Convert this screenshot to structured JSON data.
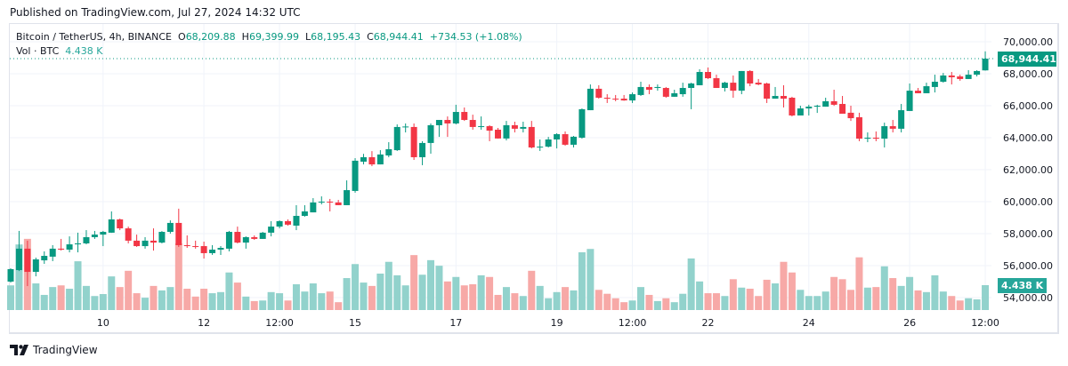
{
  "published": "Published on TradingView.com, Jul 27, 2024 14:32 UTC",
  "legend": {
    "symbol": "Bitcoin / TetherUS, 4h, BINANCE",
    "o_label": "O",
    "o": "68,209.88",
    "h_label": "H",
    "h": "69,399.99",
    "l_label": "L",
    "l": "68,195.43",
    "c_label": "C",
    "c": "68,944.41",
    "change": "+734.53 (+1.08%)",
    "vol_label": "Vol · BTC",
    "vol": "4.438 K"
  },
  "price_tag": "68,944.41",
  "vol_tag": "4.438 K",
  "footer": {
    "brand": "TradingView"
  },
  "colors": {
    "up": "#089981",
    "down": "#f23645",
    "vol_up": "#92d2cc",
    "vol_down": "#f7a9a7",
    "grid": "#f0f3fa"
  },
  "chart_data": {
    "type": "candlestick",
    "title": "Bitcoin / TetherUS, 4h, BINANCE",
    "interval": "4h",
    "ylim": [
      54000,
      70000
    ],
    "y_ticks": [
      "70,000.00",
      "68,000.00",
      "66,000.00",
      "64,000.00",
      "62,000.00",
      "60,000.00",
      "58,000.00",
      "56,000.00",
      "54,000.00"
    ],
    "y_tick_values": [
      70000,
      68000,
      66000,
      64000,
      62000,
      60000,
      58000,
      56000,
      54000
    ],
    "x_ticks": [
      {
        "label": "10",
        "candle": 11
      },
      {
        "label": "12",
        "candle": 23
      },
      {
        "label": "12:00",
        "candle": 32
      },
      {
        "label": "15",
        "candle": 41
      },
      {
        "label": "17",
        "candle": 53
      },
      {
        "label": "19",
        "candle": 65
      },
      {
        "label": "12:00",
        "candle": 74
      },
      {
        "label": "22",
        "candle": 83
      },
      {
        "label": "24",
        "candle": 95
      },
      {
        "label": "26",
        "candle": 107
      },
      {
        "label": "12:00",
        "candle": 116
      }
    ],
    "grid": true,
    "ohlc": [
      [
        55000,
        55830,
        54940,
        55780
      ],
      [
        55720,
        58170,
        55660,
        57060
      ],
      [
        57060,
        57560,
        54720,
        55610
      ],
      [
        55610,
        56500,
        55330,
        56390
      ],
      [
        56330,
        56890,
        56110,
        56610
      ],
      [
        56560,
        57280,
        56280,
        57060
      ],
      [
        57060,
        57670,
        56940,
        57000
      ],
      [
        57000,
        57830,
        56830,
        57330
      ],
      [
        57330,
        58060,
        56830,
        57390
      ],
      [
        57390,
        58220,
        57330,
        57780
      ],
      [
        57780,
        58170,
        57670,
        57940
      ],
      [
        57940,
        58170,
        57220,
        58110
      ],
      [
        58060,
        59390,
        58050,
        58890
      ],
      [
        58890,
        58940,
        58220,
        58330
      ],
      [
        58330,
        58440,
        57390,
        57560
      ],
      [
        57560,
        57940,
        57170,
        57220
      ],
      [
        57220,
        57780,
        57060,
        57560
      ],
      [
        57560,
        58330,
        56940,
        57440
      ],
      [
        57440,
        58160,
        57390,
        58110
      ],
      [
        58110,
        58830,
        58000,
        58670
      ],
      [
        58670,
        59560,
        57170,
        57280
      ],
      [
        57280,
        57890,
        57110,
        57220
      ],
      [
        57220,
        57560,
        57060,
        57170
      ],
      [
        57220,
        57500,
        56440,
        56780
      ],
      [
        56780,
        57280,
        56670,
        57000
      ],
      [
        57000,
        57220,
        56670,
        57110
      ],
      [
        57060,
        58170,
        56890,
        58110
      ],
      [
        58110,
        58440,
        57390,
        57440
      ],
      [
        57440,
        57830,
        57060,
        57780
      ],
      [
        57780,
        57890,
        57610,
        57670
      ],
      [
        57670,
        58110,
        57670,
        58060
      ],
      [
        58060,
        58780,
        57830,
        58440
      ],
      [
        58440,
        58830,
        58330,
        58780
      ],
      [
        58780,
        58890,
        58500,
        58560
      ],
      [
        58500,
        59780,
        58220,
        59110
      ],
      [
        59110,
        59780,
        59060,
        59390
      ],
      [
        59330,
        60220,
        59330,
        59950
      ],
      [
        59950,
        60330,
        59830,
        60000
      ],
      [
        60000,
        60170,
        59390,
        59950
      ],
      [
        59950,
        60110,
        59780,
        59780
      ],
      [
        59780,
        61330,
        59780,
        60720
      ],
      [
        60670,
        62720,
        60560,
        62560
      ],
      [
        62500,
        62990,
        62330,
        62780
      ],
      [
        62780,
        63160,
        62220,
        62330
      ],
      [
        62330,
        63220,
        62330,
        62950
      ],
      [
        62890,
        63720,
        62780,
        63280
      ],
      [
        63220,
        64830,
        63170,
        64670
      ],
      [
        64670,
        64890,
        64330,
        64700
      ],
      [
        64670,
        64890,
        62610,
        62780
      ],
      [
        62780,
        63780,
        62280,
        63670
      ],
      [
        63670,
        64890,
        63000,
        64780
      ],
      [
        64780,
        65110,
        64050,
        65110
      ],
      [
        65110,
        65330,
        64050,
        64890
      ],
      [
        64890,
        66060,
        64830,
        65610
      ],
      [
        65610,
        65890,
        65050,
        65110
      ],
      [
        65110,
        65440,
        64500,
        64670
      ],
      [
        64670,
        65330,
        64500,
        64720
      ],
      [
        64720,
        64780,
        63780,
        64440
      ],
      [
        64500,
        64610,
        63940,
        63950
      ],
      [
        63950,
        65050,
        63830,
        64780
      ],
      [
        64780,
        65000,
        64330,
        64560
      ],
      [
        64560,
        65000,
        64330,
        64670
      ],
      [
        64670,
        65050,
        63330,
        63390
      ],
      [
        63390,
        63890,
        63170,
        63440
      ],
      [
        63440,
        64050,
        63390,
        63890
      ],
      [
        63890,
        64280,
        63330,
        64220
      ],
      [
        64220,
        64390,
        63500,
        63560
      ],
      [
        63560,
        64110,
        63390,
        64060
      ],
      [
        64000,
        65830,
        63940,
        65780
      ],
      [
        65720,
        67330,
        65720,
        67060
      ],
      [
        67060,
        67280,
        66440,
        66500
      ],
      [
        66500,
        66720,
        66170,
        66440
      ],
      [
        66440,
        66670,
        66280,
        66390
      ],
      [
        66440,
        66670,
        66310,
        66330
      ],
      [
        66330,
        66830,
        66170,
        66720
      ],
      [
        66670,
        67500,
        66610,
        67170
      ],
      [
        67170,
        67330,
        66720,
        67000
      ],
      [
        67110,
        67330,
        66940,
        67170
      ],
      [
        67110,
        67170,
        66500,
        66560
      ],
      [
        66560,
        67000,
        66560,
        66780
      ],
      [
        66720,
        67440,
        66560,
        67110
      ],
      [
        67110,
        67440,
        65780,
        67390
      ],
      [
        67280,
        68280,
        67280,
        68110
      ],
      [
        68110,
        68390,
        67670,
        67720
      ],
      [
        67720,
        67940,
        67110,
        67110
      ],
      [
        67110,
        67500,
        66890,
        67440
      ],
      [
        67440,
        67890,
        66500,
        66940
      ],
      [
        66940,
        68170,
        66720,
        68170
      ],
      [
        68170,
        68220,
        67220,
        67390
      ],
      [
        67440,
        67670,
        67280,
        67330
      ],
      [
        67390,
        67440,
        66170,
        66440
      ],
      [
        66440,
        67170,
        66440,
        66610
      ],
      [
        66610,
        67280,
        65890,
        66440
      ],
      [
        66500,
        66560,
        65330,
        65390
      ],
      [
        65390,
        66000,
        65390,
        65830
      ],
      [
        65830,
        66060,
        65390,
        65940
      ],
      [
        65940,
        66060,
        65550,
        66000
      ],
      [
        65940,
        66500,
        65940,
        66280
      ],
      [
        66280,
        67000,
        65990,
        66060
      ],
      [
        66110,
        66610,
        65500,
        65500
      ],
      [
        65560,
        66000,
        65050,
        65220
      ],
      [
        65280,
        65560,
        63780,
        63940
      ],
      [
        63940,
        64330,
        63720,
        64000
      ],
      [
        64000,
        64390,
        63780,
        63940
      ],
      [
        63940,
        64940,
        63390,
        64720
      ],
      [
        64720,
        65110,
        64330,
        64560
      ],
      [
        64560,
        66110,
        64330,
        65720
      ],
      [
        65670,
        67390,
        65670,
        66940
      ],
      [
        66940,
        67110,
        66780,
        66780
      ],
      [
        66780,
        67440,
        66780,
        67220
      ],
      [
        67170,
        67940,
        66830,
        67500
      ],
      [
        67500,
        68050,
        67440,
        67890
      ],
      [
        67890,
        68110,
        67330,
        67780
      ],
      [
        67830,
        67940,
        67560,
        67670
      ],
      [
        67670,
        68220,
        67670,
        67940
      ],
      [
        67940,
        68220,
        67830,
        68170
      ],
      [
        68209.88,
        69399.99,
        68195.43,
        68944.41
      ]
    ],
    "volume_k": [
      4.4,
      11.7,
      12.7,
      4.75,
      2.7,
      4.1,
      4.4,
      3.8,
      8.7,
      4.3,
      2.5,
      2.85,
      6.0,
      4.1,
      7.0,
      3.0,
      2.2,
      4.3,
      3.5,
      4.1,
      11.9,
      3.8,
      2.4,
      3.8,
      3.0,
      3.2,
      6.7,
      4.9,
      2.4,
      1.6,
      1.7,
      3.2,
      3.0,
      1.7,
      4.6,
      3.3,
      4.75,
      3.0,
      3.3,
      1.4,
      5.7,
      8.2,
      4.9,
      4.3,
      6.5,
      8.6,
      6.2,
      4.4,
      9.8,
      6.3,
      8.9,
      7.9,
      5.1,
      5.9,
      4.4,
      4.6,
      6.2,
      5.9,
      2.7,
      4.1,
      3.0,
      2.5,
      7.0,
      4.3,
      2.1,
      3.2,
      4.1,
      3.5,
      10.3,
      10.9,
      3.6,
      2.9,
      2.1,
      1.4,
      1.7,
      4.1,
      2.7,
      1.6,
      2.1,
      1.4,
      2.9,
      9.2,
      5.1,
      3.0,
      3.0,
      2.5,
      5.5,
      4.0,
      3.8,
      2.5,
      5.4,
      4.75,
      8.6,
      6.7,
      3.6,
      2.5,
      2.5,
      3.3,
      5.9,
      5.5,
      3.6,
      9.4,
      4.0,
      4.1,
      7.8,
      5.7,
      4.3,
      5.9,
      3.5,
      3.2,
      6.2,
      3.3,
      2.5,
      1.7,
      2.1,
      1.9,
      4.438
    ],
    "last_price": 68944.41
  }
}
